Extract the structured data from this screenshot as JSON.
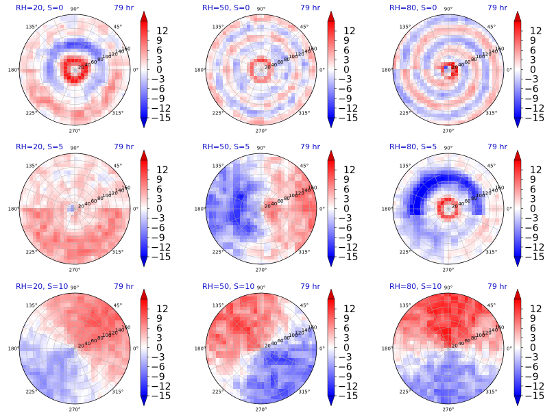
{
  "chart_data": [
    {
      "type": "heatmap",
      "projection": "polar",
      "title_left": "RH=20, S=0",
      "title_right": "79 hr",
      "pattern": "rh20s0"
    },
    {
      "type": "heatmap",
      "projection": "polar",
      "title_left": "RH=50, S=0",
      "title_right": "79 hr",
      "pattern": "rh50s0"
    },
    {
      "type": "heatmap",
      "projection": "polar",
      "title_left": "RH=80, S=0",
      "title_right": "79 hr",
      "pattern": "rh80s0"
    },
    {
      "type": "heatmap",
      "projection": "polar",
      "title_left": "RH=20, S=5",
      "title_right": "79 hr",
      "pattern": "rh20s5"
    },
    {
      "type": "heatmap",
      "projection": "polar",
      "title_left": "RH=50, S=5",
      "title_right": "79 hr",
      "pattern": "rh50s5"
    },
    {
      "type": "heatmap",
      "projection": "polar",
      "title_left": "RH=80, S=5",
      "title_right": "79 hr",
      "pattern": "rh80s5"
    },
    {
      "type": "heatmap",
      "projection": "polar",
      "title_left": "RH=20, S=10",
      "title_right": "79 hr",
      "pattern": "rh20s10"
    },
    {
      "type": "heatmap",
      "projection": "polar",
      "title_left": "RH=50, S=10",
      "title_right": "79 hr",
      "pattern": "rh50s10"
    },
    {
      "type": "heatmap",
      "projection": "polar",
      "title_left": "RH=80, S=10",
      "title_right": "79 hr",
      "pattern": "rh80s10"
    }
  ],
  "angular_ticks": [
    "0°",
    "45°",
    "90°",
    "135°",
    "180°",
    "225°",
    "270°",
    "315°"
  ],
  "radial_ticks": [
    "20",
    "40",
    "60",
    "80",
    "100",
    "120",
    "140",
    "160"
  ],
  "radial_range": [
    0,
    160
  ],
  "colorbar": {
    "ticks": [
      "12",
      "9",
      "6",
      "3",
      "0",
      "−3",
      "−6",
      "−9",
      "−12",
      "−15"
    ],
    "range": [
      -15,
      15
    ],
    "colormap": "bwr",
    "colors": {
      "low": "#0000ff",
      "mid": "#ffffff",
      "high": "#ff0000"
    },
    "extend": "both"
  }
}
